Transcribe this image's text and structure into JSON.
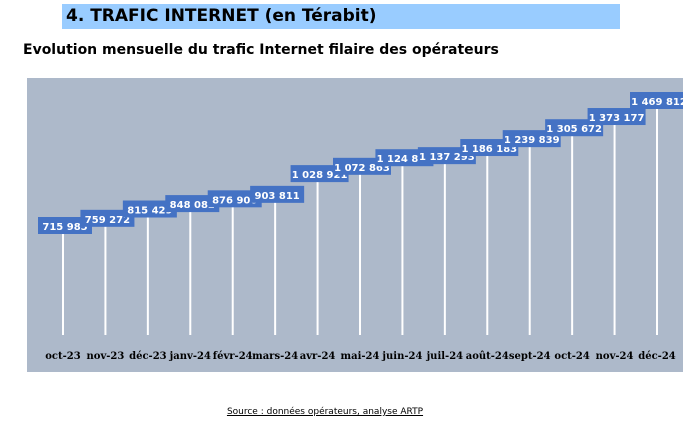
{
  "section_title": "4. TRAFIC INTERNET (en Térabit)",
  "chart_data": {
    "type": "bar",
    "title": "Evolution mensuelle du trafic Internet filaire des opérateurs",
    "xlabel": "",
    "ylabel": "",
    "categories": [
      "oct-23",
      "nov-23",
      "déc-23",
      "janv-24",
      "févr-24",
      "mars-24",
      "avr-24",
      "mai-24",
      "juin-24",
      "juil-24",
      "août-24",
      "sept-24",
      "oct-24",
      "nov-24",
      "déc-24"
    ],
    "values": [
      715985,
      759272,
      815429,
      848082,
      876900,
      903811,
      1028921,
      1072863,
      1124880,
      1137293,
      1186183,
      1239839,
      1305672,
      1373177,
      1469812
    ],
    "labels": [
      "715 985",
      "759 272",
      "815 429",
      "848 082",
      "876 900",
      "903 811",
      "1 028 921",
      "1 072 863",
      "1 124 880",
      "1 137 293",
      "1 186 183",
      "1 239 839",
      "1 305 672",
      "1 373 177",
      "1 469 812"
    ],
    "colors": {
      "plot_bg": "#adb9ca",
      "label_bg": "#4472c4",
      "line": "#ffffff"
    }
  },
  "source": "Source : données opérateurs, analyse ARTP"
}
